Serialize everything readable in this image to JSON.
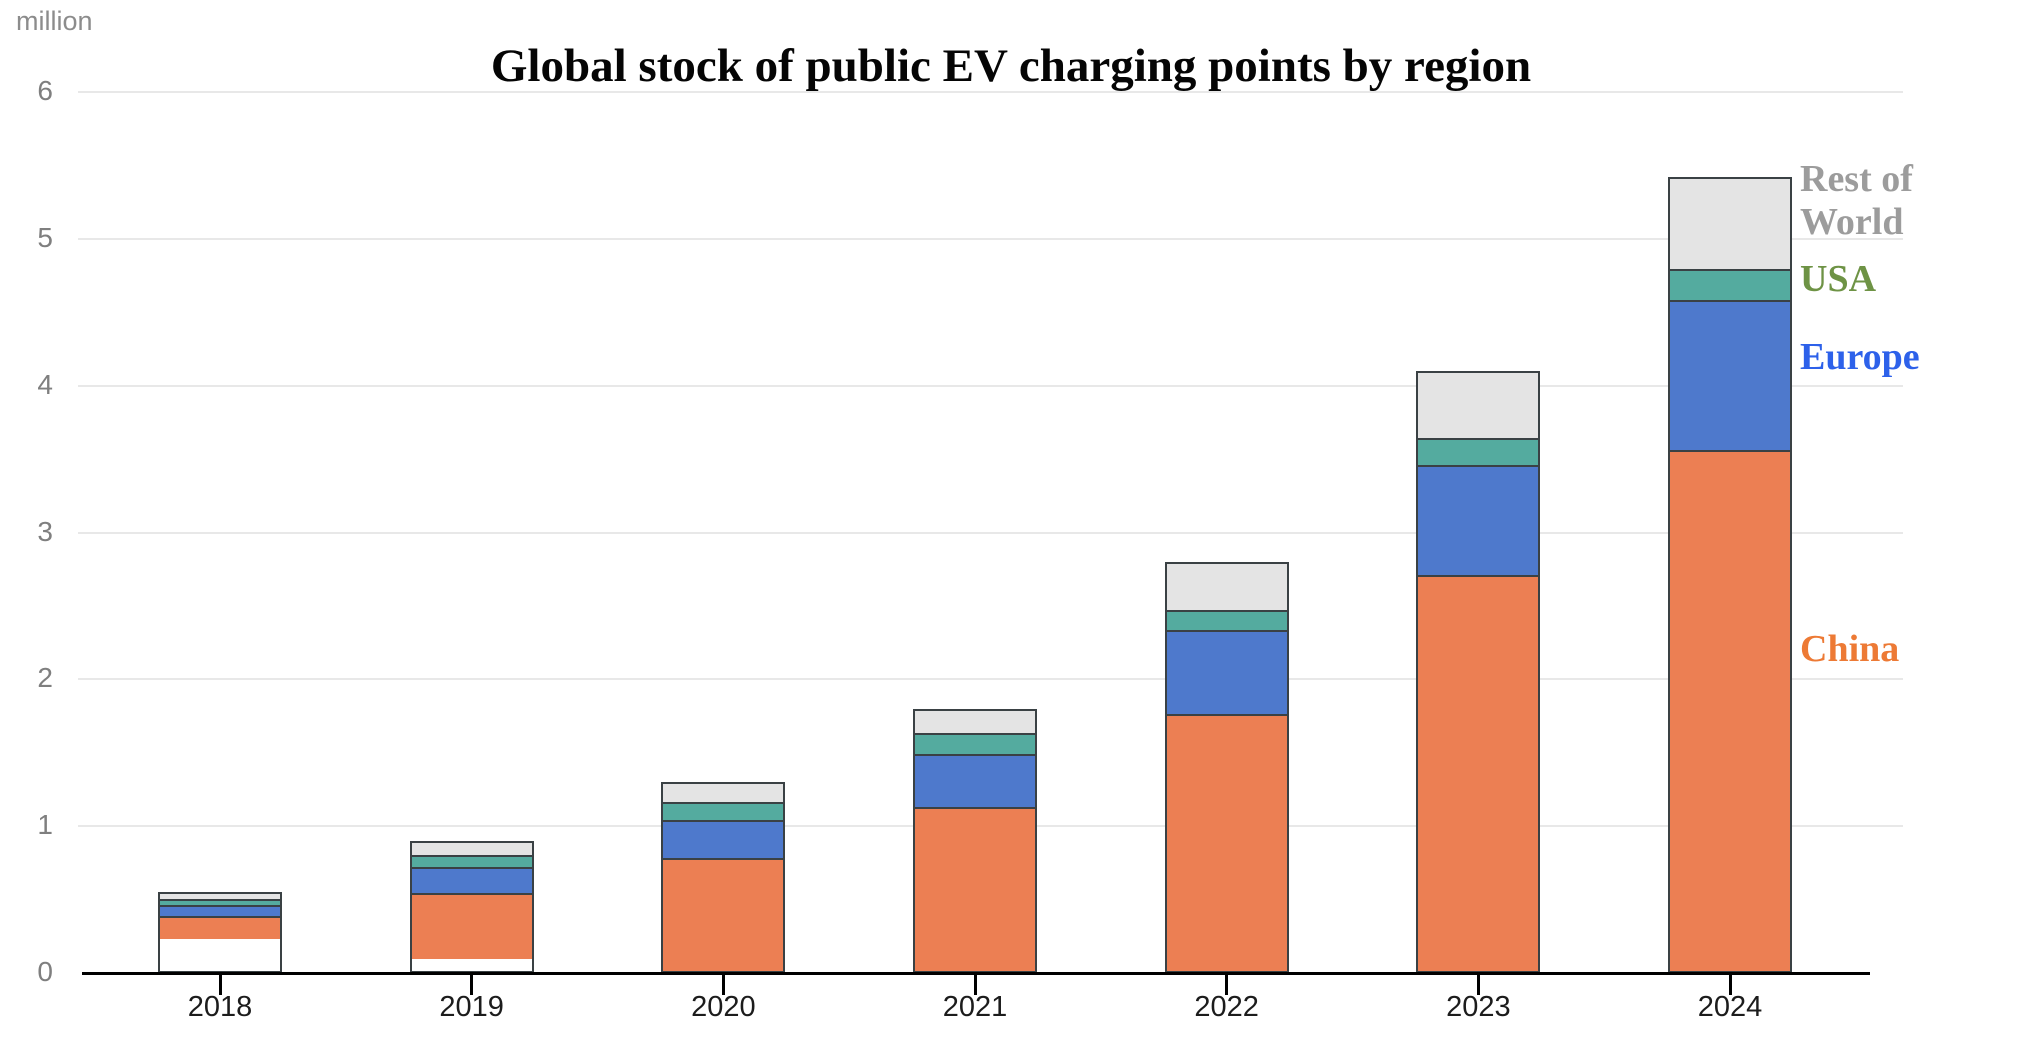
{
  "chart_data": {
    "type": "bar",
    "stacked": true,
    "title": "Global stock of public EV charging points by region",
    "unit_label": "million",
    "categories": [
      "2018",
      "2019",
      "2020",
      "2021",
      "2022",
      "2023",
      "2024"
    ],
    "series": [
      {
        "name": "China",
        "color": "#ec7f53",
        "label_color": "#ed7a35",
        "values": [
          0.3,
          0.52,
          0.8,
          1.15,
          1.78,
          2.73,
          3.58
        ]
      },
      {
        "name": "Europe",
        "color": "#4e79cc",
        "label_color": "#2d61ea",
        "values": [
          0.13,
          0.2,
          0.26,
          0.36,
          0.57,
          0.75,
          1.02
        ]
      },
      {
        "name": "USA",
        "color": "#54ab9f",
        "label_color": "#6e9345",
        "values": [
          0.05,
          0.08,
          0.11,
          0.13,
          0.13,
          0.17,
          0.2
        ]
      },
      {
        "name": "Rest of World",
        "color": "#e4e4e4",
        "label_color": "#9c9c9c",
        "values": [
          0.07,
          0.1,
          0.13,
          0.16,
          0.32,
          0.45,
          0.62
        ]
      }
    ],
    "totals": [
      0.55,
      0.9,
      1.3,
      1.8,
      2.8,
      4.1,
      5.42
    ],
    "ylim": [
      0,
      6
    ],
    "yticks": [
      0,
      1,
      2,
      3,
      4,
      5,
      6
    ],
    "grid": true,
    "legend_position": "right",
    "colors": {
      "title": "#050505",
      "gridline": "#e8e8e8",
      "axis_line": "#000000",
      "bar_border": "#3a4144",
      "ytick_label": "#7f7f7f",
      "xtick_label": "#1c1c1c",
      "unit_label": "#8c8c8c",
      "background": "#ffffff"
    }
  }
}
